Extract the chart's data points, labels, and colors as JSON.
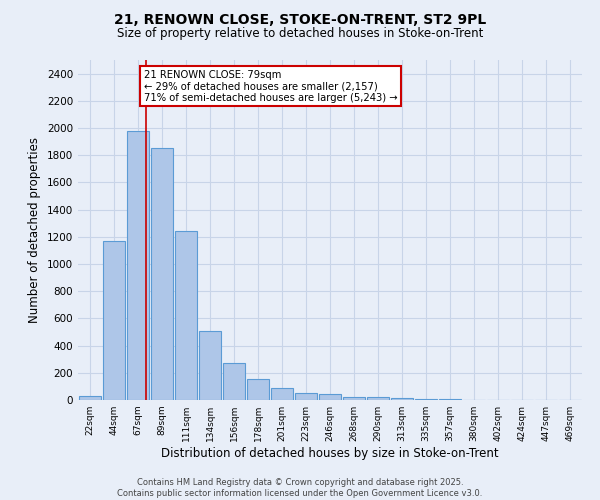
{
  "title_line1": "21, RENOWN CLOSE, STOKE-ON-TRENT, ST2 9PL",
  "title_line2": "Size of property relative to detached houses in Stoke-on-Trent",
  "xlabel": "Distribution of detached houses by size in Stoke-on-Trent",
  "ylabel": "Number of detached properties",
  "categories": [
    "22sqm",
    "44sqm",
    "67sqm",
    "89sqm",
    "111sqm",
    "134sqm",
    "156sqm",
    "178sqm",
    "201sqm",
    "223sqm",
    "246sqm",
    "268sqm",
    "290sqm",
    "313sqm",
    "335sqm",
    "357sqm",
    "380sqm",
    "402sqm",
    "424sqm",
    "447sqm",
    "469sqm"
  ],
  "values": [
    30,
    1170,
    1980,
    1855,
    1240,
    510,
    270,
    155,
    90,
    50,
    42,
    25,
    20,
    15,
    10,
    5,
    3,
    2,
    2,
    2,
    0
  ],
  "bar_color": "#aec6e8",
  "bar_edge_color": "#5b9bd5",
  "bar_linewidth": 0.8,
  "grid_color": "#c8d4e8",
  "background_color": "#e8eef8",
  "red_line_x": 2.33,
  "annotation_text": "21 RENOWN CLOSE: 79sqm\n← 29% of detached houses are smaller (2,157)\n71% of semi-detached houses are larger (5,243) →",
  "annotation_box_color": "#ffffff",
  "annotation_box_edge": "#cc0000",
  "red_line_color": "#cc0000",
  "ylim": [
    0,
    2500
  ],
  "yticks": [
    0,
    200,
    400,
    600,
    800,
    1000,
    1200,
    1400,
    1600,
    1800,
    2000,
    2200,
    2400
  ],
  "footer_line1": "Contains HM Land Registry data © Crown copyright and database right 2025.",
  "footer_line2": "Contains public sector information licensed under the Open Government Licence v3.0."
}
